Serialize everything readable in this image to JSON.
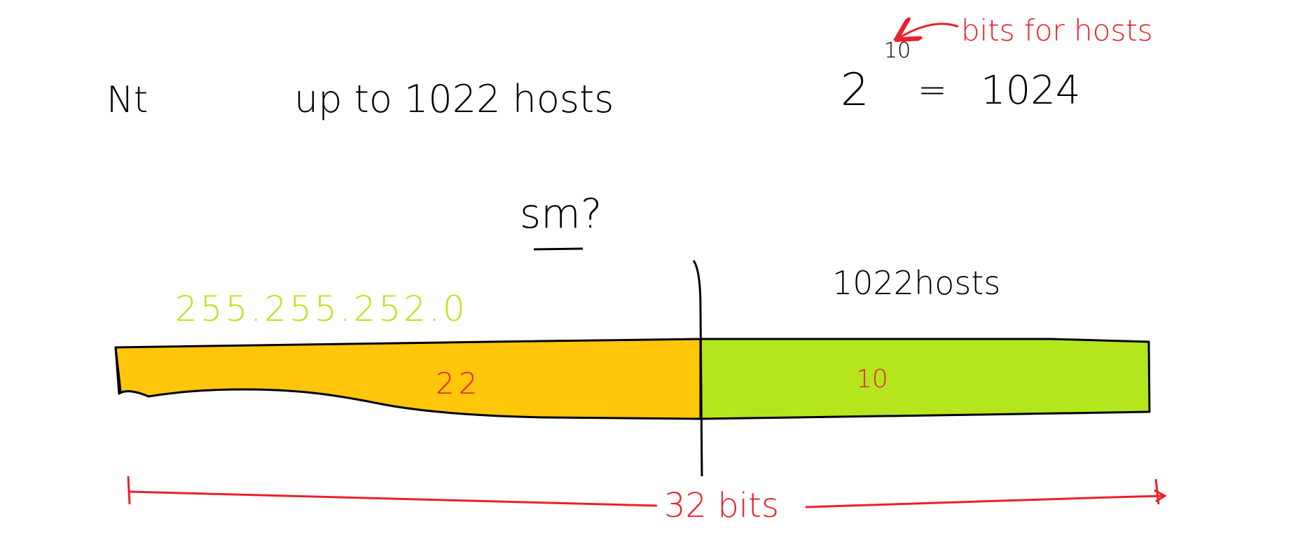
{
  "labels": {
    "network": "Nt",
    "requirement": "up to 1022 hosts",
    "power_base": "2",
    "power_exponent": "10",
    "power_equals": "=",
    "power_result": "1024",
    "annotation": "bits for hosts",
    "subnet_mask_question": "sm?",
    "host_count": "1022hosts",
    "mask_value": "255.255.252.0",
    "network_bits": "22",
    "host_bits": "10",
    "total_bits": "32 bits"
  },
  "bits": {
    "network": 22,
    "host": 10,
    "total": 32
  },
  "colors": {
    "network_bar": "#FFC60A",
    "host_bar": "#B5E51D",
    "annotation": "#E8202A",
    "mask_text": "#B5E51D",
    "ink": "#000000"
  }
}
